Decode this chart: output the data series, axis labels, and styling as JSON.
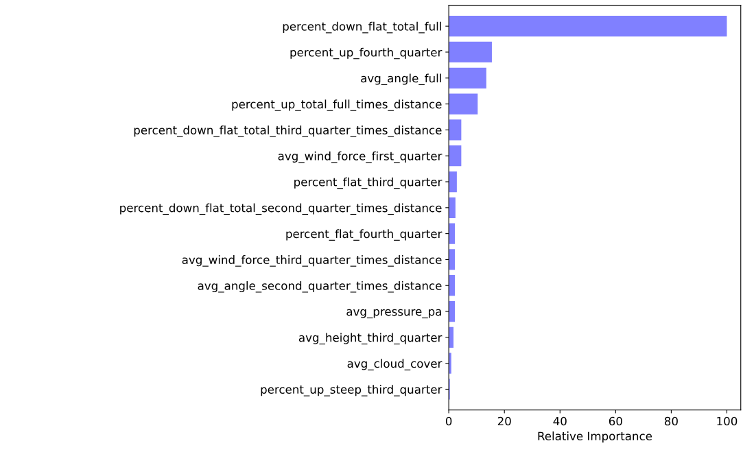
{
  "chart_data": {
    "type": "bar",
    "orientation": "horizontal",
    "xlabel": "Relative Importance",
    "categories": [
      "percent_down_flat_total_full",
      "percent_up_fourth_quarter",
      "avg_angle_full",
      "percent_up_total_full_times_distance",
      "percent_down_flat_total_third_quarter_times_distance",
      "avg_wind_force_first_quarter",
      "percent_flat_third_quarter",
      "percent_down_flat_total_second_quarter_times_distance",
      "percent_flat_fourth_quarter",
      "avg_wind_force_third_quarter_times_distance",
      "avg_angle_second_quarter_times_distance",
      "avg_pressure_pa",
      "avg_height_third_quarter",
      "avg_cloud_cover",
      "percent_up_steep_third_quarter"
    ],
    "values": [
      100,
      15.5,
      13.5,
      10.4,
      4.5,
      4.5,
      2.9,
      2.4,
      2.2,
      2.2,
      2.2,
      2.2,
      1.7,
      0.9,
      0.4
    ],
    "color": "#8080ff",
    "xlim": [
      0,
      105
    ],
    "xticks": [
      0,
      20,
      40,
      60,
      80,
      100
    ],
    "grid": false
  }
}
